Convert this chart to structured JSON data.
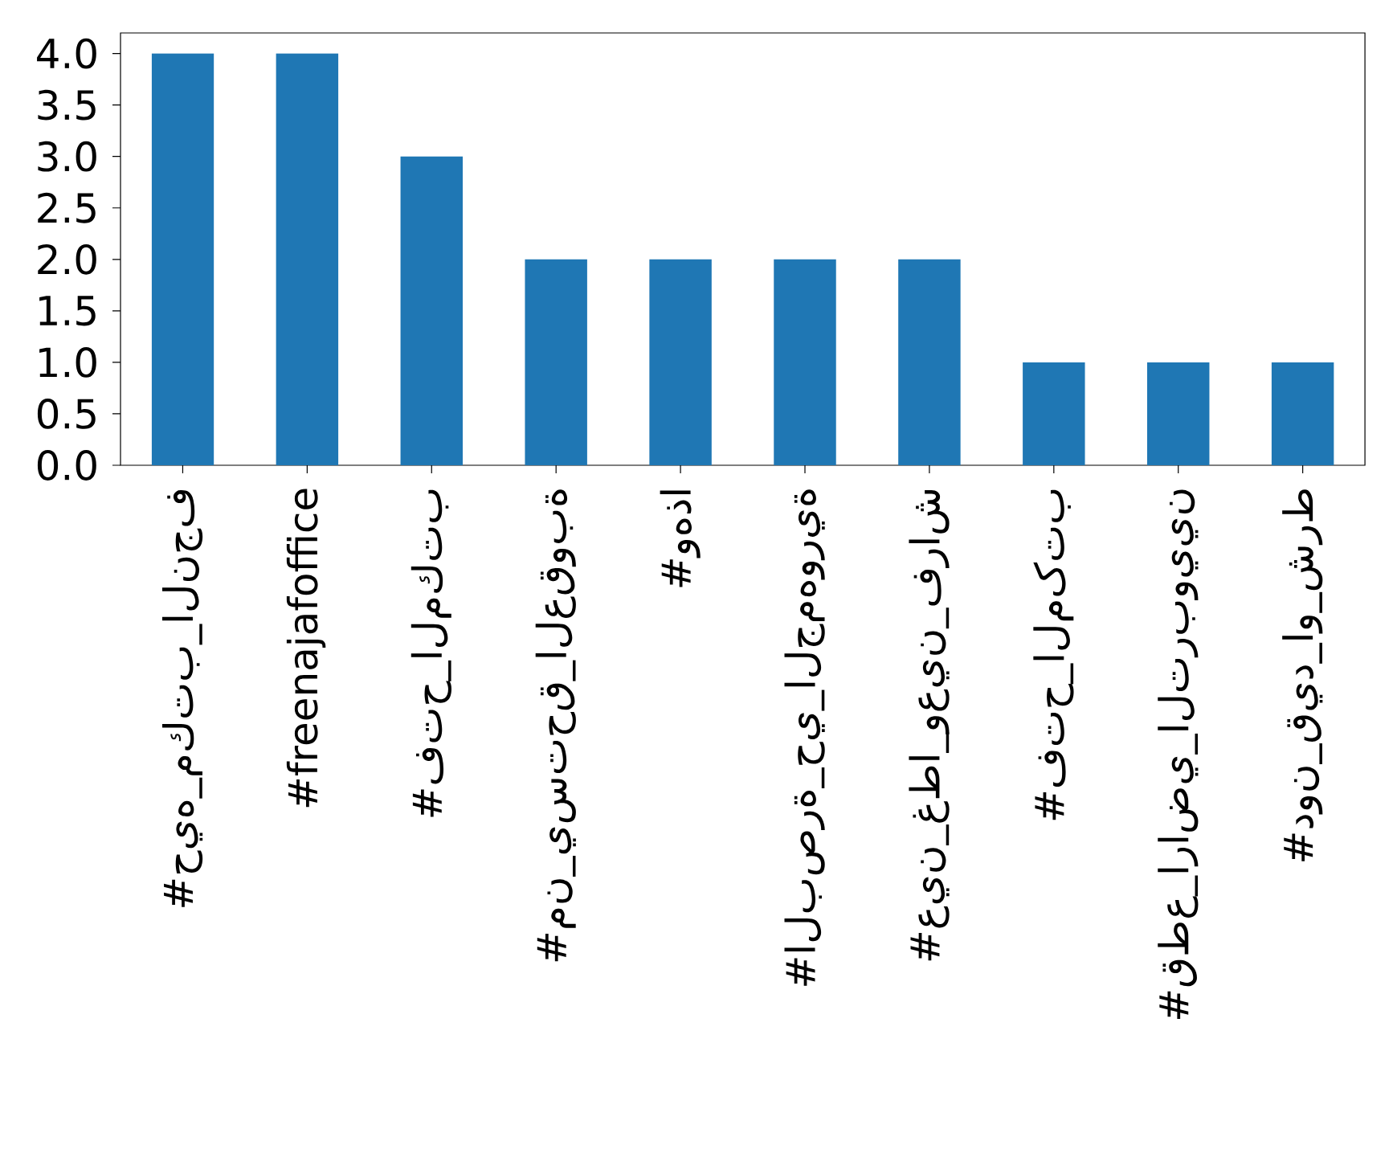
{
  "chart_data": {
    "type": "bar",
    "categories": [
      "#حيه_مكتب_النجف",
      "#freenajafoffice",
      "#فتح_المكتب",
      "#من_يستحق_العقوبة",
      "#وهذا",
      "#البصرة_حي_الجمهورية",
      "#عين_غطا_وعين_فراش",
      "#فتح_المکتب",
      "#قطع_اراضي_التربويين",
      "#دون_قيد_او_شرط"
    ],
    "values": [
      4,
      4,
      3,
      2,
      2,
      2,
      2,
      1,
      1,
      1
    ],
    "color": "#1f77b4",
    "ylim": [
      0,
      4.2
    ],
    "yticks": [
      {
        "value": 0,
        "label": "0.0"
      },
      {
        "value": 0.5,
        "label": "0.5"
      },
      {
        "value": 1,
        "label": "1.0"
      },
      {
        "value": 1.5,
        "label": "1.5"
      },
      {
        "value": 2,
        "label": "2.0"
      },
      {
        "value": 2.5,
        "label": "2.5"
      },
      {
        "value": 3,
        "label": "3.0"
      },
      {
        "value": 3.5,
        "label": "3.5"
      },
      {
        "value": 4,
        "label": "4.0"
      }
    ]
  }
}
